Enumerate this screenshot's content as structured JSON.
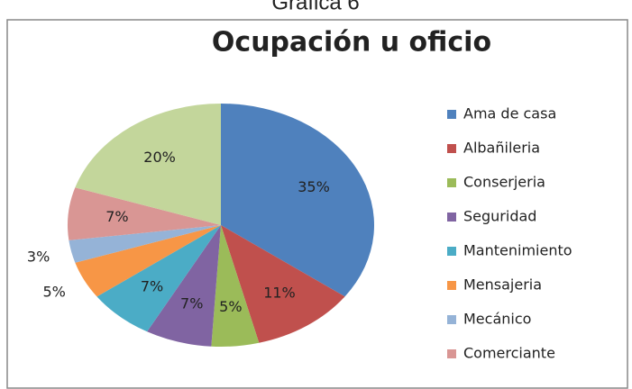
{
  "header": "Gráfica 6",
  "chart_data": {
    "type": "pie",
    "title": "Ocupación u oficio",
    "categories": [
      "Ama de casa",
      "Albañileria",
      "Conserjeria",
      "Seguridad",
      "Mantenimiento",
      "Mensajeria",
      "Mecánico",
      "Comerciante",
      null
    ],
    "values": [
      35,
      11,
      5,
      7,
      7,
      5,
      3,
      7,
      20
    ],
    "value_labels": [
      "35%",
      "11%",
      "5%",
      "7%",
      "7%",
      "5%",
      "3%",
      "7%",
      "20%"
    ],
    "colors": [
      "#4f81bd",
      "#c0504d",
      "#9bbb59",
      "#8064a2",
      "#4bacc6",
      "#f79646",
      "#95b3d7",
      "#d99694",
      "#c3d69b"
    ],
    "legend": "right"
  }
}
